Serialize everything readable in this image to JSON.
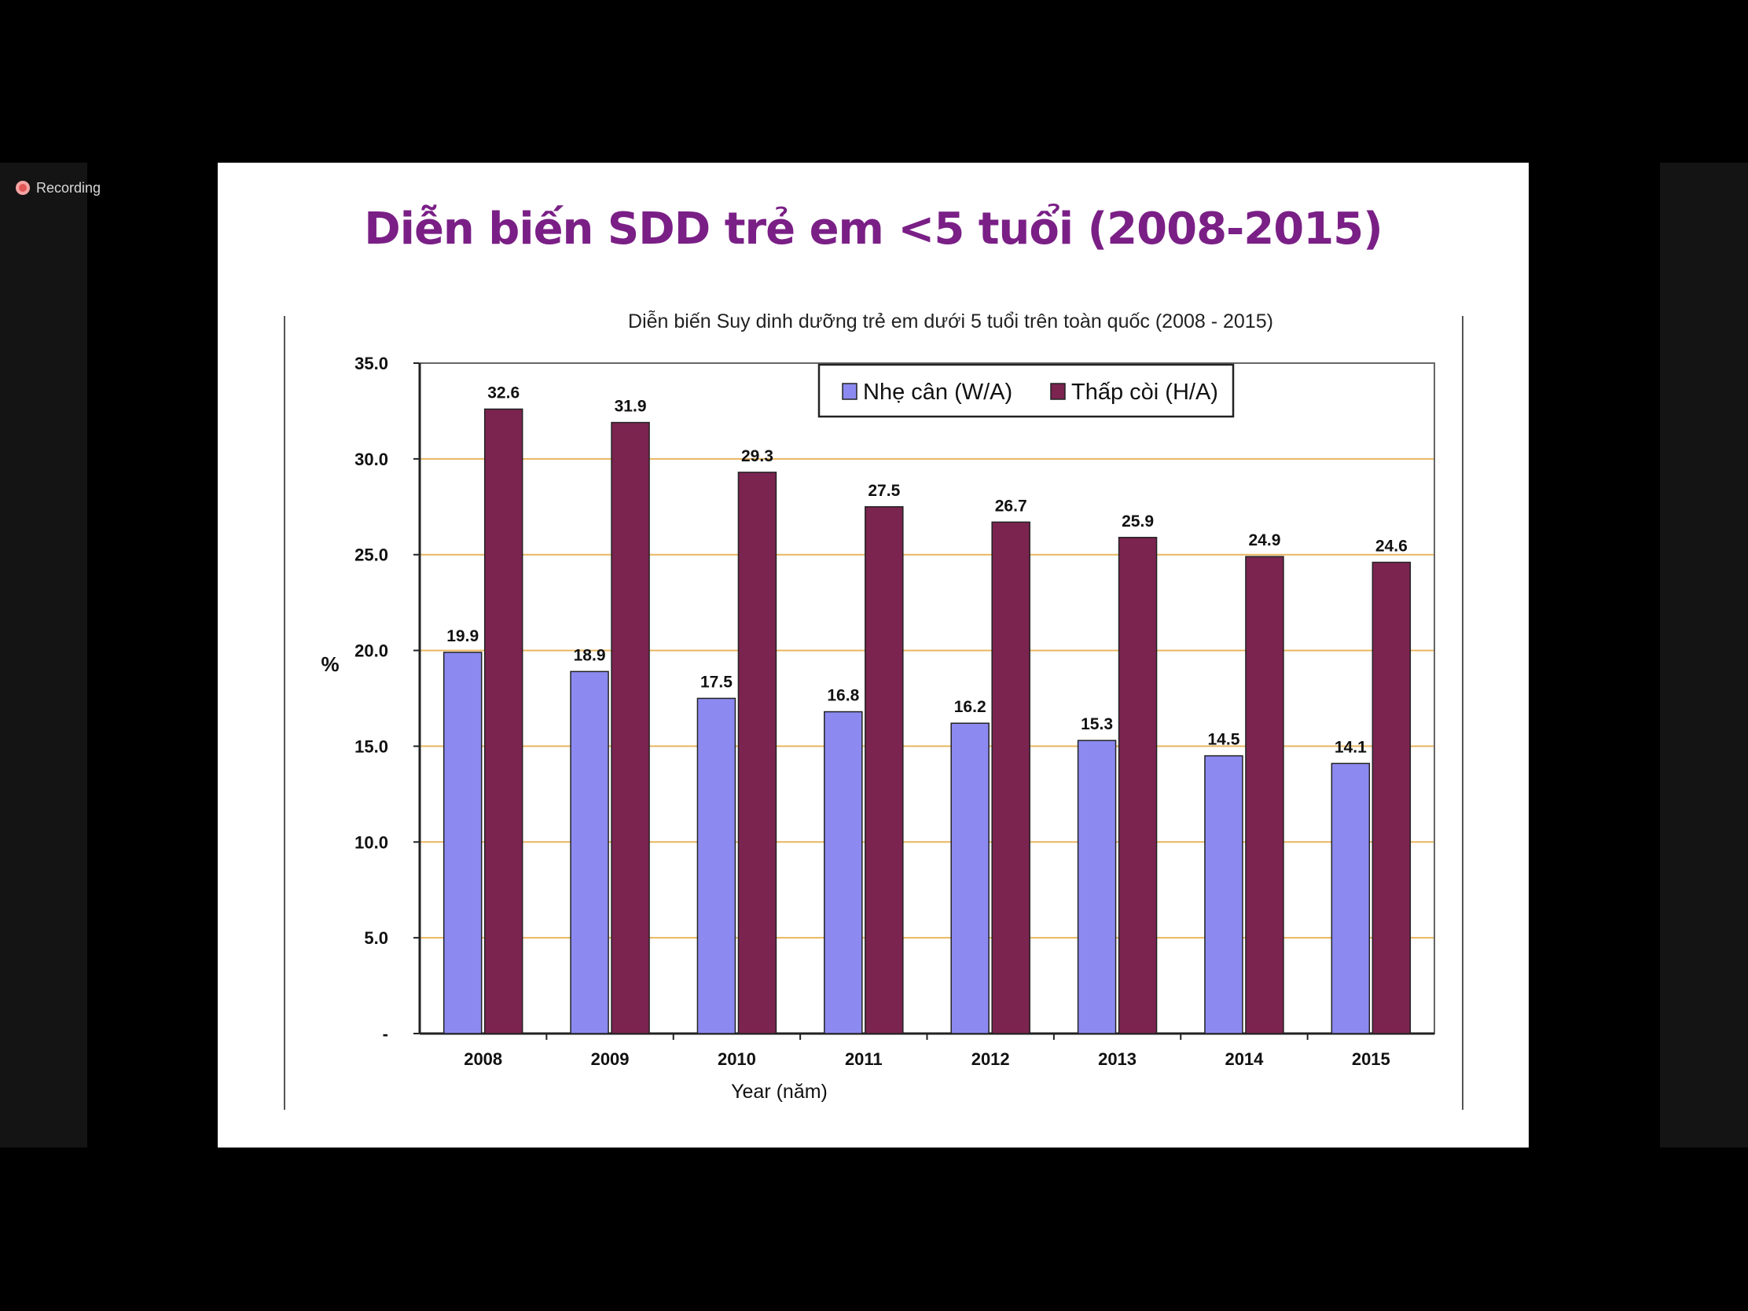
{
  "recording": {
    "label": "Recording"
  },
  "slide": {
    "title": "Diễn biến SDD trẻ em <5 tuổi (2008-2015)"
  },
  "colors": {
    "series_wa": "#8c8af0",
    "series_ha": "#7b2450",
    "gridline": "#e9b660",
    "title": "#7a1f86"
  },
  "chart_data": {
    "type": "bar",
    "title": "Diễn biến Suy dinh dưỡng trẻ em dưới 5 tuổi trên toàn quốc (2008 - 2015)",
    "xlabel": "Year (năm)",
    "ylabel": "%",
    "ylim": [
      0,
      35
    ],
    "yticks": [
      {
        "value": 0,
        "label": "-"
      },
      {
        "value": 5,
        "label": "5.0"
      },
      {
        "value": 10,
        "label": "10.0"
      },
      {
        "value": 15,
        "label": "15.0"
      },
      {
        "value": 20,
        "label": "20.0"
      },
      {
        "value": 25,
        "label": "25.0"
      },
      {
        "value": 30,
        "label": "30.0"
      },
      {
        "value": 35,
        "label": "35.0"
      }
    ],
    "grid": true,
    "legend": "top-center",
    "categories": [
      "2008",
      "2009",
      "2010",
      "2011",
      "2012",
      "2013",
      "2014",
      "2015"
    ],
    "series": [
      {
        "name": "Nhẹ cân (W/A)",
        "color": "#8c8af0",
        "values": [
          19.9,
          18.9,
          17.5,
          16.8,
          16.2,
          15.3,
          14.5,
          14.1
        ]
      },
      {
        "name": "Thấp còi (H/A)",
        "color": "#7b2450",
        "values": [
          32.6,
          31.9,
          29.3,
          27.5,
          26.7,
          25.9,
          24.9,
          24.6
        ]
      }
    ]
  }
}
